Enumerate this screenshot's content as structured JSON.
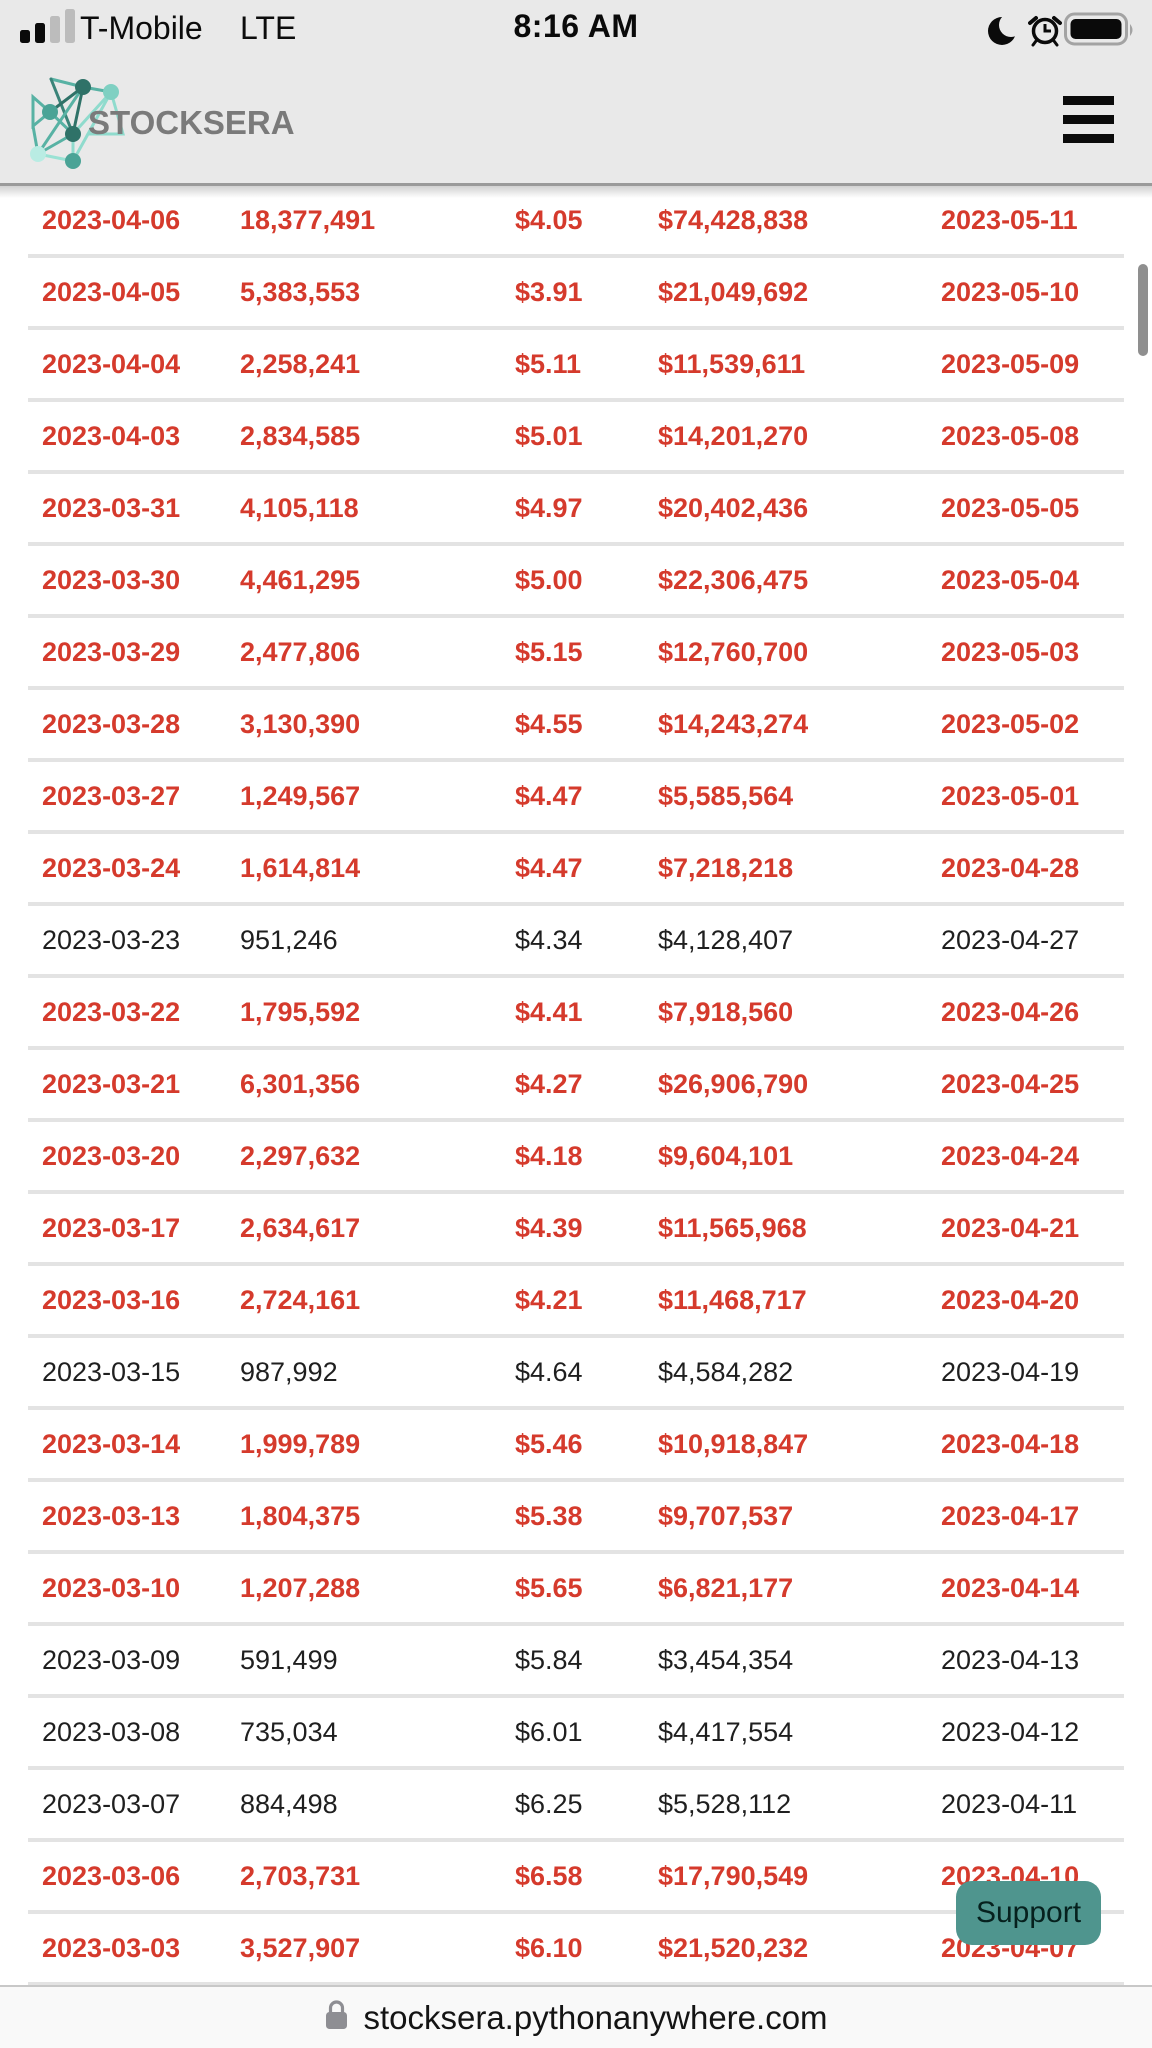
{
  "colors": {
    "header_bg": "#e9e9e9",
    "header_border": "#9a9a9a",
    "highlight_red": "#d53a2c",
    "normal_black": "#1f1f1f",
    "divider": "#e3e3e3",
    "support_bg": "#4f958e",
    "scrollbar": "#8f8f8f",
    "url_bar_bg": "#f9f9f9",
    "logo_gray": "#7a7a7a",
    "logo_teal_dark": "#2f7268",
    "logo_teal_mid": "#4aa396",
    "logo_teal_light": "#8fdbcd",
    "logo_teal_pale": "#b9ece3"
  },
  "status_bar": {
    "carrier": "T-Mobile",
    "network": "LTE",
    "time": "8:16 AM",
    "icons": [
      "signal-icon",
      "moon-icon",
      "alarm-icon",
      "battery-icon"
    ]
  },
  "navbar": {
    "logo_text": "STOCKSERA",
    "menu_icon": "hamburger-menu-icon"
  },
  "table": {
    "rows": [
      {
        "date": "2023-04-06",
        "ftd": "18,377,491",
        "price": "$4.05",
        "amount": "$74,428,838",
        "t35": "2023-05-11",
        "highlighted": true
      },
      {
        "date": "2023-04-05",
        "ftd": "5,383,553",
        "price": "$3.91",
        "amount": "$21,049,692",
        "t35": "2023-05-10",
        "highlighted": true
      },
      {
        "date": "2023-04-04",
        "ftd": "2,258,241",
        "price": "$5.11",
        "amount": "$11,539,611",
        "t35": "2023-05-09",
        "highlighted": true
      },
      {
        "date": "2023-04-03",
        "ftd": "2,834,585",
        "price": "$5.01",
        "amount": "$14,201,270",
        "t35": "2023-05-08",
        "highlighted": true
      },
      {
        "date": "2023-03-31",
        "ftd": "4,105,118",
        "price": "$4.97",
        "amount": "$20,402,436",
        "t35": "2023-05-05",
        "highlighted": true
      },
      {
        "date": "2023-03-30",
        "ftd": "4,461,295",
        "price": "$5.00",
        "amount": "$22,306,475",
        "t35": "2023-05-04",
        "highlighted": true
      },
      {
        "date": "2023-03-29",
        "ftd": "2,477,806",
        "price": "$5.15",
        "amount": "$12,760,700",
        "t35": "2023-05-03",
        "highlighted": true
      },
      {
        "date": "2023-03-28",
        "ftd": "3,130,390",
        "price": "$4.55",
        "amount": "$14,243,274",
        "t35": "2023-05-02",
        "highlighted": true
      },
      {
        "date": "2023-03-27",
        "ftd": "1,249,567",
        "price": "$4.47",
        "amount": "$5,585,564",
        "t35": "2023-05-01",
        "highlighted": true
      },
      {
        "date": "2023-03-24",
        "ftd": "1,614,814",
        "price": "$4.47",
        "amount": "$7,218,218",
        "t35": "2023-04-28",
        "highlighted": true
      },
      {
        "date": "2023-03-23",
        "ftd": "951,246",
        "price": "$4.34",
        "amount": "$4,128,407",
        "t35": "2023-04-27",
        "highlighted": false
      },
      {
        "date": "2023-03-22",
        "ftd": "1,795,592",
        "price": "$4.41",
        "amount": "$7,918,560",
        "t35": "2023-04-26",
        "highlighted": true
      },
      {
        "date": "2023-03-21",
        "ftd": "6,301,356",
        "price": "$4.27",
        "amount": "$26,906,790",
        "t35": "2023-04-25",
        "highlighted": true
      },
      {
        "date": "2023-03-20",
        "ftd": "2,297,632",
        "price": "$4.18",
        "amount": "$9,604,101",
        "t35": "2023-04-24",
        "highlighted": true
      },
      {
        "date": "2023-03-17",
        "ftd": "2,634,617",
        "price": "$4.39",
        "amount": "$11,565,968",
        "t35": "2023-04-21",
        "highlighted": true
      },
      {
        "date": "2023-03-16",
        "ftd": "2,724,161",
        "price": "$4.21",
        "amount": "$11,468,717",
        "t35": "2023-04-20",
        "highlighted": true
      },
      {
        "date": "2023-03-15",
        "ftd": "987,992",
        "price": "$4.64",
        "amount": "$4,584,282",
        "t35": "2023-04-19",
        "highlighted": false
      },
      {
        "date": "2023-03-14",
        "ftd": "1,999,789",
        "price": "$5.46",
        "amount": "$10,918,847",
        "t35": "2023-04-18",
        "highlighted": true
      },
      {
        "date": "2023-03-13",
        "ftd": "1,804,375",
        "price": "$5.38",
        "amount": "$9,707,537",
        "t35": "2023-04-17",
        "highlighted": true
      },
      {
        "date": "2023-03-10",
        "ftd": "1,207,288",
        "price": "$5.65",
        "amount": "$6,821,177",
        "t35": "2023-04-14",
        "highlighted": true
      },
      {
        "date": "2023-03-09",
        "ftd": "591,499",
        "price": "$5.84",
        "amount": "$3,454,354",
        "t35": "2023-04-13",
        "highlighted": false
      },
      {
        "date": "2023-03-08",
        "ftd": "735,034",
        "price": "$6.01",
        "amount": "$4,417,554",
        "t35": "2023-04-12",
        "highlighted": false
      },
      {
        "date": "2023-03-07",
        "ftd": "884,498",
        "price": "$6.25",
        "amount": "$5,528,112",
        "t35": "2023-04-11",
        "highlighted": false
      },
      {
        "date": "2023-03-06",
        "ftd": "2,703,731",
        "price": "$6.58",
        "amount": "$17,790,549",
        "t35": "2023-04-10",
        "highlighted": true
      },
      {
        "date": "2023-03-03",
        "ftd": "3,527,907",
        "price": "$6.10",
        "amount": "$21,520,232",
        "t35": "2023-04-07",
        "highlighted": true
      }
    ]
  },
  "support_button": {
    "label": "Support"
  },
  "browser_bar": {
    "url": "stocksera.pythonanywhere.com",
    "lock_icon": "lock-icon"
  }
}
